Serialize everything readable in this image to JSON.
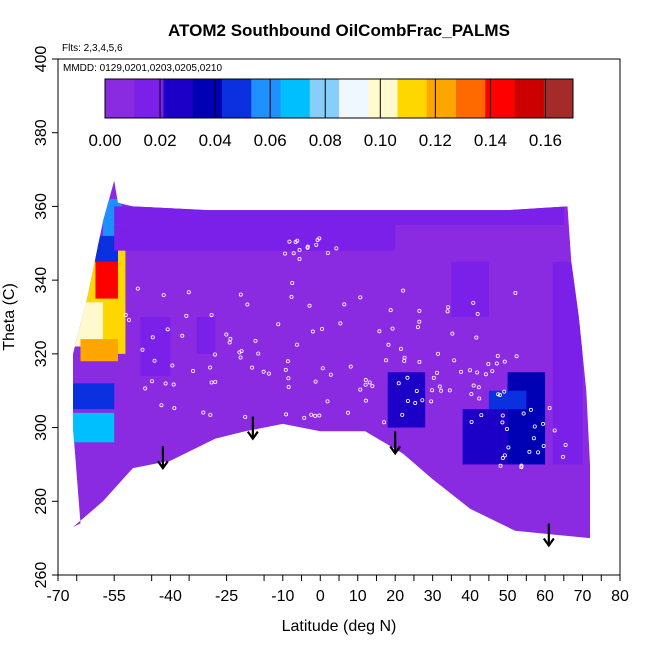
{
  "chart_data": {
    "type": "heatmap",
    "title": "ATOM2 Southbound OilCombFrac_PALMS",
    "annotations": [
      "Flts: 2,3,4,5,6",
      "MMDD: 0129,0201,0203,0205,0210"
    ],
    "xlabel": "Latitude (deg N)",
    "ylabel": "Theta (C)",
    "xlim": [
      -70,
      80
    ],
    "ylim": [
      260,
      400
    ],
    "x_tick_labels": [
      "-70",
      "-55",
      "-40",
      "-25",
      "-10",
      "0",
      "10",
      "20",
      "30",
      "40",
      "50",
      "60",
      "70",
      "80"
    ],
    "x_tick_values": [
      -70,
      -55,
      -40,
      -25,
      -10,
      0,
      10,
      20,
      30,
      40,
      50,
      60,
      70,
      80
    ],
    "y_tick_labels": [
      "260",
      "280",
      "300",
      "320",
      "340",
      "360",
      "380",
      "400"
    ],
    "y_tick_values": [
      260,
      280,
      300,
      320,
      340,
      360,
      380,
      400
    ],
    "colorbar": {
      "range": [
        0,
        0.17
      ],
      "tick_labels": [
        "0.00",
        "0.02",
        "0.04",
        "0.06",
        "0.08",
        "0.10",
        "0.12",
        "0.14",
        "0.16"
      ],
      "tick_values": [
        0,
        0.02,
        0.04,
        0.06,
        0.08,
        0.1,
        0.12,
        0.14,
        0.16
      ],
      "colors": [
        "#8a2be2",
        "#7a20e8",
        "#1c00c8",
        "#0000b4",
        "#0a30e0",
        "#1e90ff",
        "#00bfff",
        "#87cefa",
        "#f0f8ff",
        "#fffacd",
        "#ffd700",
        "#ffa500",
        "#ff6a00",
        "#ff0000",
        "#cd0000",
        "#a52a2a"
      ]
    },
    "background_color": "#8a2be2",
    "arrows_at": [
      {
        "lat": -42,
        "theta": 289
      },
      {
        "lat": -18,
        "theta": 297
      },
      {
        "lat": 20,
        "theta": 293
      },
      {
        "lat": 61,
        "theta": 268
      }
    ],
    "regions": [
      {
        "lat": [
          -64,
          -52
        ],
        "theta": [
          320,
          350
        ],
        "value": 0.11
      },
      {
        "lat": [
          -60,
          -54
        ],
        "theta": [
          335,
          350
        ],
        "value": 0.14
      },
      {
        "lat": [
          -68,
          -58
        ],
        "theta": [
          322,
          334
        ],
        "value": 0.1
      },
      {
        "lat": [
          -64,
          -54
        ],
        "theta": [
          318,
          324
        ],
        "value": 0.12
      },
      {
        "lat": [
          -58,
          -53
        ],
        "theta": [
          350,
          362
        ],
        "value": 0.06
      },
      {
        "lat": [
          -62,
          -54
        ],
        "theta": [
          345,
          352
        ],
        "value": 0.05
      },
      {
        "lat": [
          -68,
          -55
        ],
        "theta": [
          305,
          312
        ],
        "value": 0.05
      },
      {
        "lat": [
          -68,
          -55
        ],
        "theta": [
          296,
          304
        ],
        "value": 0.07
      },
      {
        "lat": [
          -55,
          65
        ],
        "theta": [
          355,
          360
        ],
        "value": 0.02
      },
      {
        "lat": [
          -55,
          20
        ],
        "theta": [
          348,
          355
        ],
        "value": 0.02
      },
      {
        "lat": [
          -48,
          -40
        ],
        "theta": [
          314,
          330
        ],
        "value": 0.02
      },
      {
        "lat": [
          -33,
          -28
        ],
        "theta": [
          320,
          330
        ],
        "value": 0.02
      },
      {
        "lat": [
          18,
          28
        ],
        "theta": [
          300,
          315
        ],
        "value": 0.03
      },
      {
        "lat": [
          38,
          50
        ],
        "theta": [
          290,
          305
        ],
        "value": 0.03
      },
      {
        "lat": [
          50,
          60
        ],
        "theta": [
          290,
          315
        ],
        "value": 0.04
      },
      {
        "lat": [
          62,
          70
        ],
        "theta": [
          290,
          345
        ],
        "value": 0.02
      },
      {
        "lat": [
          45,
          55
        ],
        "theta": [
          305,
          310
        ],
        "value": 0.05
      },
      {
        "lat": [
          35,
          45
        ],
        "theta": [
          330,
          345
        ],
        "value": 0.02
      }
    ],
    "grid": false,
    "legend": "colorbar top"
  }
}
